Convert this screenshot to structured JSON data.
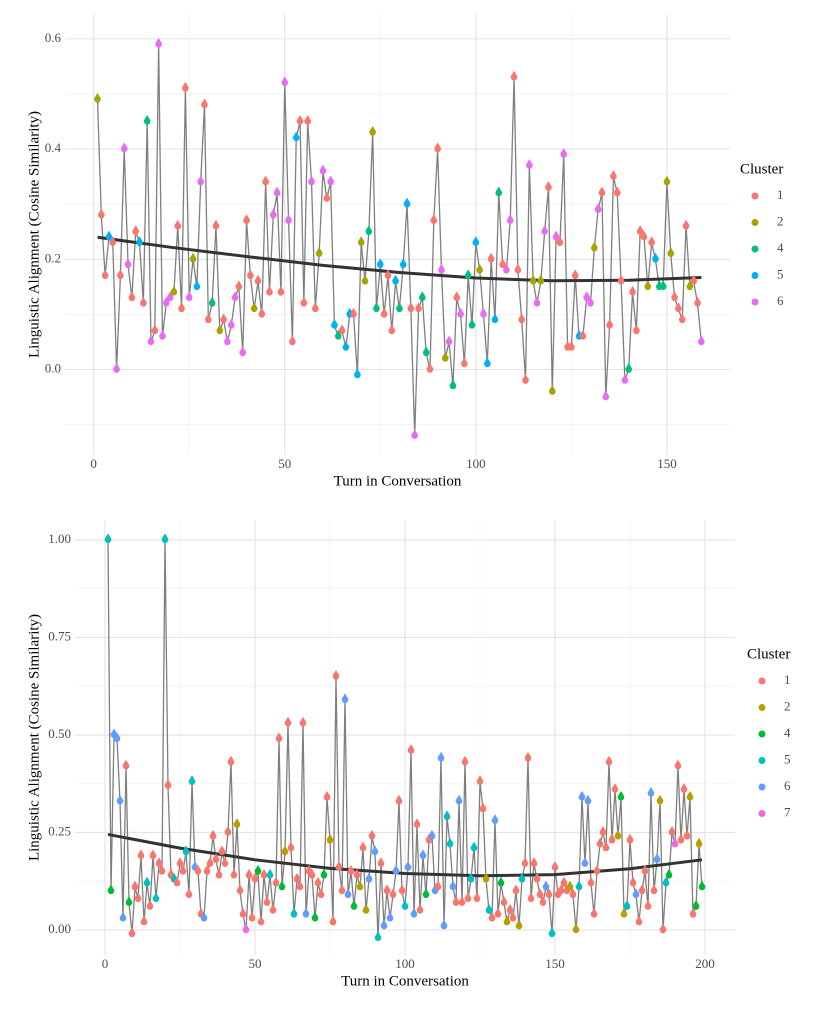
{
  "chart_data": [
    {
      "type": "line",
      "x_label": "Turn in Conversation",
      "y_label": "Linguistic Alignment (Cosine Similarity)",
      "xlim": [
        -7.5,
        166.5
      ],
      "ylim": [
        -0.155,
        0.645
      ],
      "xticks": [
        0,
        50,
        100,
        150
      ],
      "yticks": [
        {
          "value": 0,
          "label": "0.0"
        },
        0.2,
        0.4,
        0.6
      ],
      "grid": true,
      "minor_grid": true,
      "legend_title": "Cluster",
      "legend": "right",
      "line_color": "#7f7f7f",
      "series": [
        {
          "name": "1",
          "color": "#F8766D"
        },
        {
          "name": "2",
          "color": "#A3A500"
        },
        {
          "name": "4",
          "color": "#00BF7D"
        },
        {
          "name": "5",
          "color": "#00B0F6"
        },
        {
          "name": "6",
          "color": "#E76BF3"
        }
      ],
      "x": [
        1,
        2,
        3,
        4,
        5,
        6,
        7,
        8,
        9,
        10,
        11,
        12,
        13,
        14,
        15,
        16,
        17,
        18,
        19,
        20,
        21,
        22,
        23,
        24,
        25,
        26,
        27,
        28,
        29,
        30,
        31,
        32,
        33,
        34,
        35,
        36,
        37,
        38,
        39,
        40,
        41,
        42,
        43,
        44,
        45,
        46,
        47,
        48,
        49,
        50,
        51,
        52,
        53,
        54,
        55,
        56,
        57,
        58,
        59,
        60,
        61,
        62,
        63,
        64,
        65,
        66,
        67,
        68,
        69,
        70,
        71,
        72,
        73,
        74,
        75,
        76,
        77,
        78,
        79,
        80,
        81,
        82,
        83,
        84,
        85,
        86,
        87,
        88,
        89,
        90,
        91,
        92,
        93,
        94,
        95,
        96,
        97,
        98,
        99,
        100,
        101,
        102,
        103,
        104,
        105,
        106,
        107,
        108,
        109,
        110,
        111,
        112,
        113,
        114,
        115,
        116,
        117,
        118,
        119,
        120,
        121,
        122,
        123,
        124,
        125,
        126,
        127,
        128,
        129,
        130,
        131,
        132,
        133,
        134,
        135,
        136,
        137,
        138,
        139,
        140,
        141,
        142,
        143,
        144,
        145,
        146,
        147,
        148,
        149,
        150,
        151,
        152,
        153,
        154,
        155,
        156,
        157,
        158,
        159
      ],
      "values": [
        0.49,
        0.28,
        0.17,
        0.24,
        0.23,
        0.0,
        0.17,
        0.4,
        0.19,
        0.13,
        0.25,
        0.23,
        0.12,
        0.45,
        0.05,
        0.07,
        0.59,
        0.06,
        0.12,
        0.13,
        0.14,
        0.26,
        0.11,
        0.51,
        0.13,
        0.2,
        0.15,
        0.34,
        0.48,
        0.09,
        0.12,
        0.26,
        0.07,
        0.09,
        0.05,
        0.08,
        0.13,
        0.15,
        0.03,
        0.27,
        0.17,
        0.11,
        0.16,
        0.1,
        0.34,
        0.14,
        0.28,
        0.32,
        0.14,
        0.52,
        0.27,
        0.05,
        0.42,
        0.45,
        0.12,
        0.45,
        0.34,
        0.11,
        0.21,
        0.36,
        0.31,
        0.34,
        0.08,
        0.06,
        0.07,
        0.04,
        0.1,
        0.1,
        -0.01,
        0.23,
        0.16,
        0.25,
        0.43,
        0.11,
        0.19,
        0.1,
        0.17,
        0.07,
        0.16,
        0.11,
        0.19,
        0.3,
        0.11,
        -0.12,
        0.11,
        0.13,
        0.03,
        0.0,
        0.27,
        0.4,
        0.18,
        0.02,
        0.05,
        -0.03,
        0.13,
        0.1,
        0.01,
        0.17,
        0.08,
        0.23,
        0.18,
        0.1,
        0.01,
        0.2,
        0.09,
        0.32,
        0.19,
        0.18,
        0.27,
        0.53,
        0.18,
        0.09,
        -0.02,
        0.37,
        0.16,
        0.12,
        0.16,
        0.25,
        0.33,
        -0.04,
        0.24,
        0.23,
        0.39,
        0.04,
        0.04,
        0.17,
        0.06,
        0.06,
        0.13,
        0.12,
        0.22,
        0.29,
        0.32,
        -0.05,
        0.08,
        0.35,
        0.32,
        0.16,
        -0.02,
        0.0,
        0.14,
        0.07,
        0.25,
        0.24,
        0.15,
        0.23,
        0.2,
        0.15,
        0.15,
        0.34,
        0.21,
        0.13,
        0.11,
        0.09,
        0.26,
        0.15,
        0.16,
        0.12,
        0.05
      ],
      "cluster": [
        "2",
        "1",
        "1",
        "5",
        "1",
        "6",
        "1",
        "6",
        "6",
        "1",
        "1",
        "5",
        "1",
        "4",
        "6",
        "1",
        "6",
        "6",
        "6",
        "6",
        "2",
        "1",
        "1",
        "1",
        "6",
        "2",
        "5",
        "6",
        "1",
        "1",
        "4",
        "1",
        "2",
        "1",
        "6",
        "6",
        "6",
        "1",
        "6",
        "1",
        "1",
        "2",
        "1",
        "1",
        "1",
        "1",
        "6",
        "6",
        "1",
        "6",
        "6",
        "1",
        "5",
        "1",
        "1",
        "1",
        "6",
        "1",
        "2",
        "6",
        "1",
        "6",
        "5",
        "4",
        "1",
        "5",
        "5",
        "1",
        "5",
        "2",
        "2",
        "4",
        "2",
        "4",
        "5",
        "1",
        "1",
        "1",
        "5",
        "4",
        "5",
        "5",
        "1",
        "6",
        "1",
        "4",
        "4",
        "1",
        "1",
        "1",
        "6",
        "2",
        "6",
        "4",
        "1",
        "6",
        "1",
        "4",
        "4",
        "5",
        "2",
        "6",
        "5",
        "1",
        "5",
        "4",
        "1",
        "6",
        "6",
        "1",
        "1",
        "1",
        "1",
        "6",
        "2",
        "6",
        "2",
        "6",
        "1",
        "2",
        "6",
        "1",
        "6",
        "1",
        "1",
        "1",
        "5",
        "1",
        "6",
        "6",
        "2",
        "6",
        "1",
        "6",
        "1",
        "1",
        "1",
        "1",
        "6",
        "4",
        "1",
        "1",
        "1",
        "1",
        "2",
        "1",
        "5",
        "4",
        "4",
        "2",
        "2",
        "1",
        "1",
        "1",
        "1",
        "2",
        "1",
        "1",
        "6"
      ],
      "trend": {
        "color": "#333333",
        "x": [
          1,
          20,
          40,
          60,
          80,
          100,
          120,
          140,
          159
        ],
        "values": [
          0.24,
          0.222,
          0.205,
          0.189,
          0.176,
          0.166,
          0.161,
          0.162,
          0.167
        ]
      }
    },
    {
      "type": "line",
      "x_label": "Turn in Conversation",
      "y_label": "Linguistic Alignment (Cosine Similarity)",
      "xlim": [
        -10,
        210
      ],
      "ylim": [
        -0.064,
        1.051
      ],
      "xticks": [
        0,
        50,
        100,
        150,
        200
      ],
      "yticks": [
        {
          "value": 0,
          "label": "0.00"
        },
        0.25,
        {
          "value": 0.5,
          "label": "0.50"
        },
        0.75,
        {
          "value": 1,
          "label": "1.00"
        }
      ],
      "grid": true,
      "minor_grid": true,
      "legend_title": "Cluster",
      "legend": "right",
      "line_color": "#7f7f7f",
      "series": [
        {
          "name": "1",
          "color": "#F8766D"
        },
        {
          "name": "2",
          "color": "#B79F00"
        },
        {
          "name": "4",
          "color": "#00BA38"
        },
        {
          "name": "5",
          "color": "#00BFC4"
        },
        {
          "name": "6",
          "color": "#619CFF"
        },
        {
          "name": "7",
          "color": "#F564E3"
        }
      ],
      "x": [
        1,
        2,
        3,
        4,
        5,
        6,
        7,
        8,
        9,
        10,
        11,
        12,
        13,
        14,
        15,
        16,
        17,
        18,
        19,
        20,
        21,
        22,
        23,
        24,
        25,
        26,
        27,
        28,
        29,
        30,
        31,
        32,
        33,
        34,
        35,
        36,
        37,
        38,
        39,
        40,
        41,
        42,
        43,
        44,
        45,
        46,
        47,
        48,
        49,
        50,
        51,
        52,
        53,
        54,
        55,
        56,
        57,
        58,
        59,
        60,
        61,
        62,
        63,
        64,
        65,
        66,
        67,
        68,
        69,
        70,
        71,
        72,
        73,
        74,
        75,
        76,
        77,
        78,
        79,
        80,
        81,
        82,
        83,
        84,
        85,
        86,
        87,
        88,
        89,
        90,
        91,
        92,
        93,
        94,
        95,
        96,
        97,
        98,
        99,
        100,
        101,
        102,
        103,
        104,
        105,
        106,
        107,
        108,
        109,
        110,
        111,
        112,
        113,
        114,
        115,
        116,
        117,
        118,
        119,
        120,
        121,
        122,
        123,
        124,
        125,
        126,
        127,
        128,
        129,
        130,
        131,
        132,
        133,
        134,
        135,
        136,
        137,
        138,
        139,
        140,
        141,
        142,
        143,
        144,
        145,
        146,
        147,
        148,
        149,
        150,
        151,
        152,
        153,
        154,
        155,
        156,
        157,
        158,
        159,
        160,
        161,
        162,
        163,
        164,
        165,
        166,
        167,
        168,
        169,
        170,
        171,
        172,
        173,
        174,
        175,
        176,
        177,
        178,
        179,
        180,
        181,
        182,
        183,
        184,
        185,
        186,
        187,
        188,
        189,
        190,
        191,
        192,
        193,
        194,
        195,
        196,
        197,
        198,
        199
      ],
      "values": [
        1.0,
        0.1,
        0.5,
        0.49,
        0.33,
        0.03,
        0.42,
        0.07,
        -0.01,
        0.11,
        0.08,
        0.19,
        0.02,
        0.12,
        0.06,
        0.19,
        0.08,
        0.17,
        0.15,
        1.0,
        0.37,
        0.14,
        0.13,
        0.12,
        0.17,
        0.15,
        0.2,
        0.09,
        0.38,
        0.16,
        0.15,
        0.04,
        0.03,
        0.15,
        0.17,
        0.24,
        0.18,
        0.14,
        0.2,
        0.17,
        0.25,
        0.43,
        0.14,
        0.27,
        0.1,
        0.04,
        0.0,
        0.14,
        0.03,
        0.13,
        0.15,
        0.02,
        0.14,
        0.07,
        0.14,
        0.05,
        0.12,
        0.49,
        0.11,
        0.2,
        0.53,
        0.21,
        0.04,
        0.13,
        0.11,
        0.53,
        0.04,
        0.15,
        0.14,
        0.03,
        0.12,
        0.09,
        0.14,
        0.34,
        0.23,
        0.02,
        0.65,
        0.16,
        0.1,
        0.59,
        0.09,
        0.15,
        0.06,
        0.14,
        0.11,
        0.21,
        0.05,
        0.13,
        0.24,
        0.2,
        -0.02,
        0.17,
        0.01,
        0.1,
        0.03,
        0.09,
        0.15,
        0.33,
        0.1,
        0.06,
        0.16,
        0.46,
        0.04,
        0.27,
        0.05,
        0.19,
        0.09,
        0.23,
        0.24,
        0.1,
        0.11,
        0.44,
        0.01,
        0.29,
        0.22,
        0.11,
        0.07,
        0.33,
        0.07,
        0.43,
        0.08,
        0.13,
        0.21,
        0.08,
        0.38,
        0.31,
        0.13,
        0.05,
        0.03,
        0.28,
        0.04,
        0.12,
        0.07,
        0.02,
        0.05,
        0.03,
        0.1,
        0.01,
        0.13,
        0.17,
        0.44,
        0.08,
        0.17,
        0.13,
        0.09,
        0.07,
        0.11,
        0.09,
        -0.01,
        0.16,
        0.09,
        0.1,
        0.12,
        0.1,
        0.11,
        0.09,
        0.0,
        0.11,
        0.34,
        0.17,
        0.33,
        0.12,
        0.04,
        0.15,
        0.22,
        0.25,
        0.21,
        0.43,
        0.23,
        0.36,
        0.24,
        0.34,
        0.04,
        0.06,
        0.23,
        0.12,
        0.09,
        0.02,
        0.1,
        0.15,
        0.06,
        0.35,
        0.1,
        0.18,
        0.33,
        0.0,
        0.12,
        0.14,
        0.25,
        0.22,
        0.42,
        0.23,
        0.36,
        0.24,
        0.34,
        0.04,
        0.06,
        0.22,
        0.11
      ],
      "cluster": [
        "5",
        "4",
        "6",
        "6",
        "6",
        "6",
        "1",
        "4",
        "1",
        "1",
        "1",
        "1",
        "1",
        "5",
        "1",
        "1",
        "5",
        "1",
        "1",
        "5",
        "1",
        "1",
        "5",
        "1",
        "1",
        "1",
        "5",
        "1",
        "5",
        "6",
        "1",
        "1",
        "6",
        "1",
        "1",
        "1",
        "1",
        "1",
        "1",
        "1",
        "1",
        "1",
        "1",
        "2",
        "1",
        "1",
        "7",
        "1",
        "1",
        "1",
        "4",
        "1",
        "1",
        "1",
        "5",
        "1",
        "1",
        "1",
        "4",
        "2",
        "1",
        "1",
        "5",
        "1",
        "1",
        "1",
        "6",
        "1",
        "1",
        "4",
        "1",
        "1",
        "4",
        "1",
        "2",
        "1",
        "1",
        "1",
        "1",
        "6",
        "6",
        "1",
        "4",
        "1",
        "2",
        "1",
        "2",
        "6",
        "1",
        "6",
        "5",
        "1",
        "6",
        "1",
        "6",
        "1",
        "6",
        "1",
        "1",
        "5",
        "6",
        "1",
        "6",
        "1",
        "1",
        "6",
        "4",
        "1",
        "6",
        "6",
        "1",
        "6",
        "6",
        "5",
        "5",
        "6",
        "1",
        "6",
        "1",
        "1",
        "1",
        "5",
        "5",
        "1",
        "1",
        "1",
        "2",
        "5",
        "1",
        "6",
        "1",
        "4",
        "1",
        "2",
        "1",
        "1",
        "1",
        "2",
        "5",
        "1",
        "1",
        "1",
        "1",
        "1",
        "1",
        "1",
        "6",
        "1",
        "5",
        "1",
        "1",
        "1",
        "1",
        "1",
        "2",
        "1",
        "2",
        "5",
        "6",
        "6",
        "6",
        "1",
        "1",
        "1",
        "1",
        "1",
        "1",
        "1",
        "1",
        "1",
        "2",
        "4",
        "2",
        "5",
        "1",
        "1",
        "6",
        "1",
        "1",
        "1",
        "1",
        "6",
        "1",
        "6",
        "2",
        "1",
        "5",
        "4",
        "1",
        "7",
        "1",
        "1",
        "1",
        "1",
        "2",
        "1",
        "4",
        "2",
        "4"
      ],
      "trend": {
        "color": "#333333",
        "x": [
          1,
          25,
          50,
          75,
          100,
          125,
          150,
          175,
          199
        ],
        "values": [
          0.245,
          0.21,
          0.18,
          0.158,
          0.145,
          0.139,
          0.142,
          0.157,
          0.18
        ]
      }
    }
  ]
}
